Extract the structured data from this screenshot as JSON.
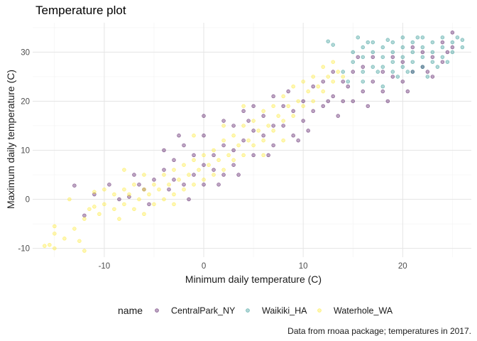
{
  "chart_data": {
    "type": "scatter",
    "title": "Temperature plot",
    "xlabel": "Minimum daily temperature (C)",
    "ylabel": "Maximum daily temperature (C)",
    "caption": "Data from rnoaa package; temperatures in 2017.",
    "xlim": [
      -17.2,
      26.9
    ],
    "ylim": [
      -11.8,
      36
    ],
    "xticks": [
      -10,
      0,
      10,
      20
    ],
    "yticks": [
      -10,
      0,
      10,
      20,
      30
    ],
    "grid": true,
    "legend": {
      "title": "name",
      "position": "bottom"
    },
    "series": [
      {
        "name": "CentralPark_NY",
        "color": "#440154",
        "points": [
          [
            -13,
            2.8
          ],
          [
            -12,
            -3.3
          ],
          [
            -11,
            1
          ],
          [
            -9.5,
            3
          ],
          [
            -8.5,
            0
          ],
          [
            -7.5,
            0.5
          ],
          [
            -7,
            5
          ],
          [
            -6,
            2
          ],
          [
            -5.5,
            -1
          ],
          [
            -5,
            4
          ],
          [
            -4,
            6
          ],
          [
            -4,
            10
          ],
          [
            -3,
            4
          ],
          [
            -3,
            8
          ],
          [
            -2,
            3
          ],
          [
            -2,
            11
          ],
          [
            -1,
            5
          ],
          [
            -1,
            9
          ],
          [
            0,
            3
          ],
          [
            0,
            7
          ],
          [
            0,
            13
          ],
          [
            0,
            17
          ],
          [
            1,
            6
          ],
          [
            1,
            9
          ],
          [
            2,
            5
          ],
          [
            2,
            11
          ],
          [
            2,
            16
          ],
          [
            3,
            7
          ],
          [
            3,
            10
          ],
          [
            3,
            15
          ],
          [
            4,
            12
          ],
          [
            4,
            18
          ],
          [
            5,
            9
          ],
          [
            5,
            14
          ],
          [
            5,
            19
          ],
          [
            6,
            13
          ],
          [
            6,
            17
          ],
          [
            7,
            11
          ],
          [
            7,
            15
          ],
          [
            7,
            21
          ],
          [
            8,
            15
          ],
          [
            8,
            19
          ],
          [
            9,
            13
          ],
          [
            9,
            18
          ],
          [
            10,
            16
          ],
          [
            10,
            20
          ],
          [
            11,
            18
          ],
          [
            11,
            23
          ],
          [
            12,
            19
          ],
          [
            12,
            24
          ],
          [
            13,
            21
          ],
          [
            13,
            26
          ],
          [
            14,
            20
          ],
          [
            14,
            24
          ],
          [
            15,
            20
          ],
          [
            15,
            26
          ],
          [
            16,
            22
          ],
          [
            16,
            27
          ],
          [
            17,
            24
          ],
          [
            17,
            29
          ],
          [
            18,
            22
          ],
          [
            18,
            26
          ],
          [
            19,
            25
          ],
          [
            19,
            29
          ],
          [
            20,
            24
          ],
          [
            20,
            28
          ],
          [
            21,
            26
          ],
          [
            21,
            31
          ],
          [
            22,
            27
          ],
          [
            22,
            30
          ],
          [
            23,
            25
          ],
          [
            23,
            29
          ],
          [
            24,
            28
          ],
          [
            24,
            32
          ],
          [
            25,
            31
          ],
          [
            25,
            34
          ],
          [
            18.5,
            20
          ],
          [
            16.5,
            19
          ],
          [
            14.5,
            23
          ],
          [
            12.5,
            20
          ],
          [
            9.5,
            12
          ],
          [
            6.5,
            9
          ],
          [
            3.5,
            5
          ],
          [
            1.5,
            3
          ],
          [
            -1.5,
            0
          ],
          [
            -3.5,
            2
          ],
          [
            -6.5,
            3
          ],
          [
            20.5,
            22
          ],
          [
            22.5,
            26
          ],
          [
            24.5,
            30
          ],
          [
            10.5,
            14
          ],
          [
            8.5,
            22
          ],
          [
            -2.5,
            13
          ],
          [
            4.5,
            16
          ],
          [
            13.5,
            17
          ],
          [
            15.5,
            29
          ]
        ]
      },
      {
        "name": "Waikiki_HA",
        "color": "#21908C",
        "points": [
          [
            12.5,
            32.2
          ],
          [
            13,
            31.5
          ],
          [
            14,
            26
          ],
          [
            15,
            28
          ],
          [
            15,
            30
          ],
          [
            16,
            26
          ],
          [
            16,
            29
          ],
          [
            16,
            31
          ],
          [
            17,
            27
          ],
          [
            17,
            30
          ],
          [
            17,
            32
          ],
          [
            18,
            27
          ],
          [
            18,
            29
          ],
          [
            18,
            31
          ],
          [
            19,
            26
          ],
          [
            19,
            28
          ],
          [
            19,
            30
          ],
          [
            19,
            32
          ],
          [
            20,
            27
          ],
          [
            20,
            29
          ],
          [
            20,
            31
          ],
          [
            20,
            33
          ],
          [
            21,
            26
          ],
          [
            21,
            28
          ],
          [
            21,
            30
          ],
          [
            21,
            32
          ],
          [
            22,
            27
          ],
          [
            22,
            29
          ],
          [
            22,
            31
          ],
          [
            22,
            33
          ],
          [
            23,
            28
          ],
          [
            23,
            30
          ],
          [
            23,
            32
          ],
          [
            24,
            29
          ],
          [
            24,
            31
          ],
          [
            24,
            33
          ],
          [
            25,
            30
          ],
          [
            25,
            32
          ],
          [
            26,
            31
          ],
          [
            26,
            32.5
          ],
          [
            15.5,
            33
          ],
          [
            16.5,
            32
          ],
          [
            17.5,
            26
          ],
          [
            18.5,
            32.5
          ],
          [
            19.5,
            25
          ],
          [
            20.5,
            26
          ],
          [
            21.5,
            33
          ],
          [
            22.5,
            25
          ],
          [
            23.5,
            27
          ],
          [
            24.5,
            28
          ],
          [
            25.5,
            33
          ],
          [
            14.5,
            24
          ],
          [
            16,
            24
          ],
          [
            18,
            23
          ]
        ]
      },
      {
        "name": "Waterhole_WA",
        "color": "#FDE725",
        "points": [
          [
            -16,
            -9.5
          ],
          [
            -15.5,
            -9.3
          ],
          [
            -15,
            -10
          ],
          [
            -15,
            -7
          ],
          [
            -15,
            -5.5
          ],
          [
            -14,
            -8
          ],
          [
            -13.5,
            0
          ],
          [
            -13,
            -6
          ],
          [
            -12.5,
            -8.5
          ],
          [
            -12,
            -10.5
          ],
          [
            -12,
            -4
          ],
          [
            -11.5,
            -2
          ],
          [
            -11,
            -1.5
          ],
          [
            -11,
            1.5
          ],
          [
            -10.5,
            -3
          ],
          [
            -10,
            -1
          ],
          [
            -10,
            2
          ],
          [
            -9,
            -2
          ],
          [
            -9,
            1
          ],
          [
            -8.5,
            -4
          ],
          [
            -8,
            -1
          ],
          [
            -8,
            2
          ],
          [
            -7.5,
            1
          ],
          [
            -7,
            -2
          ],
          [
            -7,
            3
          ],
          [
            -6.5,
            0
          ],
          [
            -6,
            2
          ],
          [
            -6,
            5
          ],
          [
            -5.5,
            1
          ],
          [
            -5,
            -1
          ],
          [
            -5,
            3
          ],
          [
            -4.5,
            2
          ],
          [
            -4,
            0
          ],
          [
            -4,
            5
          ],
          [
            -3.5,
            3
          ],
          [
            -3,
            1
          ],
          [
            -3,
            6
          ],
          [
            -2.5,
            4
          ],
          [
            -2,
            2
          ],
          [
            -2,
            7
          ],
          [
            -1.5,
            5
          ],
          [
            -1,
            3
          ],
          [
            -1,
            8
          ],
          [
            -0.5,
            6
          ],
          [
            0,
            4
          ],
          [
            0,
            9
          ],
          [
            0.5,
            7
          ],
          [
            1,
            5
          ],
          [
            1,
            10
          ],
          [
            1.5,
            8
          ],
          [
            2,
            6
          ],
          [
            2,
            12
          ],
          [
            2.5,
            9
          ],
          [
            3,
            8
          ],
          [
            3,
            13
          ],
          [
            3.5,
            11
          ],
          [
            4,
            9
          ],
          [
            4,
            15
          ],
          [
            4.5,
            12
          ],
          [
            5,
            11
          ],
          [
            5,
            16
          ],
          [
            5.5,
            14
          ],
          [
            6,
            12
          ],
          [
            6,
            18
          ],
          [
            6.5,
            15
          ],
          [
            7,
            14
          ],
          [
            7,
            19
          ],
          [
            7.5,
            17
          ],
          [
            8,
            16
          ],
          [
            8,
            21
          ],
          [
            8.5,
            19
          ],
          [
            9,
            17
          ],
          [
            9,
            23
          ],
          [
            9.5,
            20
          ],
          [
            10,
            19
          ],
          [
            10,
            24
          ],
          [
            10.5,
            22
          ],
          [
            11,
            20
          ],
          [
            11,
            25
          ],
          [
            11.5,
            23
          ],
          [
            12,
            22
          ],
          [
            12,
            27
          ],
          [
            12.5,
            25
          ],
          [
            13,
            24
          ],
          [
            13,
            28
          ],
          [
            13.5,
            26
          ],
          [
            14,
            25
          ],
          [
            6,
            9
          ],
          [
            -1,
            13
          ],
          [
            2,
            15
          ],
          [
            4,
            19
          ],
          [
            8,
            12
          ],
          [
            -3,
            -1
          ],
          [
            -6,
            -3
          ],
          [
            -8,
            6
          ]
        ]
      }
    ]
  }
}
